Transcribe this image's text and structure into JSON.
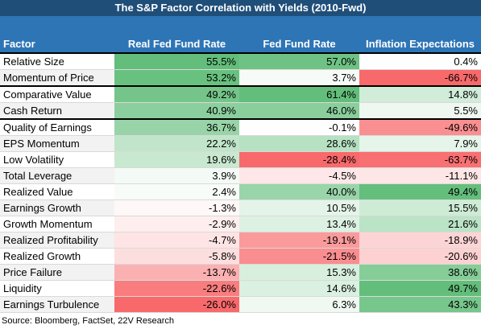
{
  "title": "The S&P Factor Correlation with Yields (2010-Fwd)",
  "table": {
    "header": [
      "Factor",
      "Real Fed Fund Rate",
      "Fed Fund Rate",
      "Inflation Expectations"
    ],
    "rows": [
      [
        "Relative Size",
        "55.5%",
        "57.0%",
        "0.4%"
      ],
      [
        "Momentum of Price",
        "53.2%",
        "3.7%",
        "-66.7%"
      ],
      [
        "Comparative Value",
        "49.2%",
        "61.4%",
        "14.8%"
      ],
      [
        "Cash Return",
        "40.9%",
        "46.0%",
        "5.5%"
      ],
      [
        "Quality of Earnings",
        "36.7%",
        "-0.1%",
        "-49.6%"
      ],
      [
        "EPS Momentum",
        "22.2%",
        "28.6%",
        "7.9%"
      ],
      [
        "Low Volatility",
        "19.6%",
        "-28.4%",
        "-63.7%"
      ],
      [
        "Total Leverage",
        "3.9%",
        "-4.5%",
        "-11.1%"
      ],
      [
        "Realized Value",
        "2.4%",
        "40.0%",
        "49.4%"
      ],
      [
        "Earnings Growth",
        "-1.3%",
        "10.5%",
        "15.5%"
      ],
      [
        "Growth Momentum",
        "-2.9%",
        "13.4%",
        "21.6%"
      ],
      [
        "Realized Profitability",
        "-4.7%",
        "-19.1%",
        "-18.9%"
      ],
      [
        "Realized Growth",
        "-5.8%",
        "-21.5%",
        "-20.6%"
      ],
      [
        "Price Failure",
        "-13.7%",
        "15.3%",
        "38.6%"
      ],
      [
        "Liquidity",
        "-22.6%",
        "14.6%",
        "49.7%"
      ],
      [
        "Earnings Turbulence",
        "-26.0%",
        "6.3%",
        "43.3%"
      ]
    ]
  },
  "source": "Source: Bloomberg, FactSet, 22V Research"
}
